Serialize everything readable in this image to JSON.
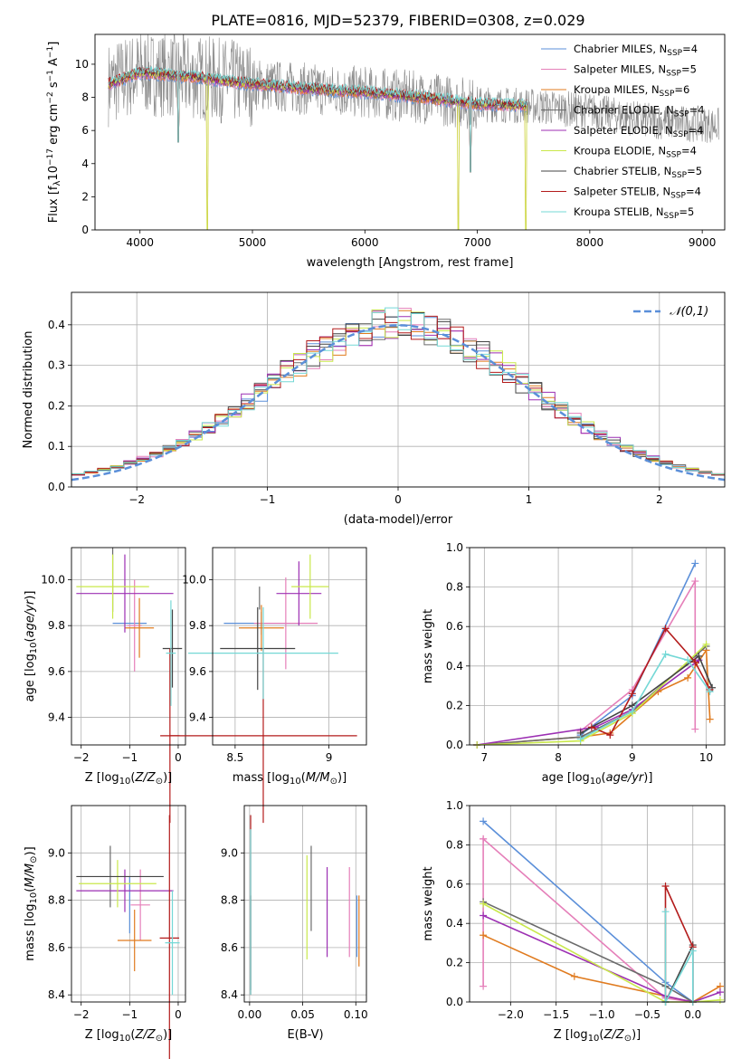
{
  "figure": {
    "title": "PLATE=0816, MJD=52379, FIBERID=0308, z=0.029"
  },
  "colors": {
    "s0": "#5b8fd9",
    "s1": "#e57fb9",
    "s2": "#e07b1f",
    "s3": "#6b6b6b",
    "s4": "#9c2fb3",
    "s5": "#c9e84a",
    "s6": "#444444",
    "s7": "#b31b1b",
    "s8": "#74d8d6",
    "obs": "#8a8a8a"
  },
  "legend_spectrum": [
    {
      "pre": "Chabrier MILES, N",
      "sub": "SSP",
      "post": "=4"
    },
    {
      "pre": "Salpeter MILES, N",
      "sub": "SSP",
      "post": "=5"
    },
    {
      "pre": "Kroupa MILES, N",
      "sub": "SSP",
      "post": "=6"
    },
    {
      "pre": "Chabrier ELODIE, N",
      "sub": "SSP",
      "post": "=4"
    },
    {
      "pre": "Salpeter ELODIE, N",
      "sub": "SSP",
      "post": "=4"
    },
    {
      "pre": "Kroupa ELODIE, N",
      "sub": "SSP",
      "post": "=4"
    },
    {
      "pre": "Chabrier STELIB, N",
      "sub": "SSP",
      "post": "=5"
    },
    {
      "pre": "Salpeter STELIB, N",
      "sub": "SSP",
      "post": "=4"
    },
    {
      "pre": "Kroupa STELIB, N",
      "sub": "SSP",
      "post": "=5"
    }
  ],
  "legend_normal": "𝒩(0,1)",
  "chart_data": [
    {
      "id": "spectrum",
      "type": "line",
      "xlabel": "wavelength [Angstrom, rest frame]",
      "ylabel_parts": [
        "Flux [f",
        "λ",
        "10",
        "−17",
        " erg cm",
        "−2",
        " s",
        "−1",
        " A",
        "−1",
        "]"
      ],
      "xlim": [
        3600,
        9200
      ],
      "ylim": [
        0,
        11.8
      ],
      "xticks": [
        4000,
        5000,
        6000,
        7000,
        8000,
        9000
      ],
      "yticks": [
        0,
        2,
        4,
        6,
        8,
        10
      ],
      "observed_range": [
        3720,
        9150
      ],
      "model_range": [
        3720,
        7440
      ],
      "continuum": [
        [
          3720,
          8.8
        ],
        [
          4000,
          9.5
        ],
        [
          4500,
          9.2
        ],
        [
          5000,
          8.8
        ],
        [
          5500,
          8.5
        ],
        [
          6000,
          8.3
        ],
        [
          6500,
          8.0
        ],
        [
          7000,
          7.6
        ],
        [
          7440,
          7.5
        ],
        [
          8000,
          7.2
        ],
        [
          8500,
          6.6
        ],
        [
          9150,
          6.3
        ]
      ],
      "dips": [
        [
          4340,
          5.3
        ],
        [
          4600,
          0
        ],
        [
          6830,
          0
        ],
        [
          6940,
          3.5
        ],
        [
          7430,
          0
        ]
      ],
      "grid": false
    },
    {
      "id": "residuals",
      "type": "histogram",
      "xlabel": "(data-model)/error",
      "ylabel": "Normed distribution",
      "xlim": [
        -2.5,
        2.5
      ],
      "ylim": [
        0,
        0.48
      ],
      "xticks": [
        -2,
        -1,
        0,
        1,
        2
      ],
      "yticks": [
        0.0,
        0.1,
        0.2,
        0.3,
        0.4
      ],
      "bin_width": 0.1,
      "grid": true,
      "normal": {
        "mean": 0,
        "sigma": 1,
        "label": "𝒩(0,1)"
      }
    },
    {
      "id": "age_vs_Z",
      "type": "scatter",
      "xlabel": "Z [log10(Z/Z⊙)]",
      "ylabel": "age  [log10(age/yr)]",
      "xlim": [
        -2.2,
        0.15
      ],
      "ylim": [
        9.28,
        10.14
      ],
      "xticks": [
        -2,
        -1,
        0
      ],
      "yticks": [
        9.4,
        9.6,
        9.8,
        10.0
      ],
      "grid": true,
      "points": [
        {
          "s": 0,
          "x": -1.0,
          "xerr": 0.35,
          "y": 9.81,
          "yerr": 0.0
        },
        {
          "s": 1,
          "x": -0.9,
          "xerr": 0.15,
          "y": 9.8,
          "yerr": 0.2
        },
        {
          "s": 2,
          "x": -0.8,
          "xerr": 0.3,
          "y": 9.79,
          "yerr": 0.13
        },
        {
          "s": 3,
          "x": -1.35,
          "xerr": 0.0,
          "y": 10.0,
          "yerr": 0.14
        },
        {
          "s": 4,
          "x": -1.1,
          "xerr": 1.0,
          "y": 9.94,
          "yerr": 0.17
        },
        {
          "s": 5,
          "x": -1.35,
          "xerr": 0.75,
          "y": 9.97,
          "yerr": 0.14
        },
        {
          "s": 6,
          "x": -0.12,
          "xerr": 0.2,
          "y": 9.7,
          "yerr": 0.17
        },
        {
          "s": 7,
          "x": -0.17,
          "xerr": 0.2,
          "y": 9.32,
          "yerr": 0.38
        },
        {
          "s": 8,
          "x": -0.15,
          "xerr": 0.1,
          "y": 9.68,
          "yerr": 0.23
        }
      ]
    },
    {
      "id": "age_vs_mass",
      "type": "scatter",
      "xlabel": "mass [log10(M/M⊙)]",
      "ylabel": "",
      "xlim": [
        8.38,
        9.2
      ],
      "ylim": [
        9.28,
        10.14
      ],
      "xticks": [
        8.5,
        9.0
      ],
      "yticks": [
        9.4,
        9.6,
        9.8,
        10.0
      ],
      "grid": true,
      "points": [
        {
          "s": 0,
          "x": 8.64,
          "xerr": 0.2,
          "y": 9.81,
          "yerr": 0.05
        },
        {
          "s": 1,
          "x": 8.77,
          "xerr": 0.17,
          "y": 9.81,
          "yerr": 0.2
        },
        {
          "s": 2,
          "x": 8.64,
          "xerr": 0.12,
          "y": 9.79,
          "yerr": 0.1
        },
        {
          "s": 3,
          "x": 8.63,
          "xerr": 0.0,
          "y": 9.92,
          "yerr": 0.05
        },
        {
          "s": 4,
          "x": 8.84,
          "xerr": 0.12,
          "y": 9.94,
          "yerr": 0.14
        },
        {
          "s": 5,
          "x": 8.9,
          "xerr": 0.1,
          "y": 9.97,
          "yerr": 0.14
        },
        {
          "s": 6,
          "x": 8.62,
          "xerr": 0.2,
          "y": 9.7,
          "yerr": 0.18
        },
        {
          "s": 7,
          "x": 8.65,
          "xerr": 0.5,
          "y": 9.32,
          "yerr": 0.38
        },
        {
          "s": 8,
          "x": 8.65,
          "xerr": 0.4,
          "y": 9.68,
          "yerr": 0.2
        }
      ]
    },
    {
      "id": "mass_weight_vs_age",
      "type": "line",
      "xlabel": "age  [log10(age/yr)]",
      "ylabel": "mass weight",
      "xlim": [
        6.8,
        10.25
      ],
      "ylim": [
        0,
        1.0
      ],
      "xticks": [
        7,
        8,
        9,
        10
      ],
      "yticks": [
        0.0,
        0.2,
        0.4,
        0.6,
        0.8,
        1.0
      ],
      "grid": true,
      "series": [
        {
          "s": 0,
          "points": [
            [
              8.3,
              0.05
            ],
            [
              9.0,
              0.25
            ],
            [
              9.85,
              0.92
            ]
          ]
        },
        {
          "s": 1,
          "points": [
            [
              8.3,
              0.07
            ],
            [
              9.0,
              0.28
            ],
            [
              9.85,
              0.83
            ],
            [
              9.85,
              0.08
            ]
          ]
        },
        {
          "s": 2,
          "points": [
            [
              6.9,
              0.0
            ],
            [
              8.3,
              0.04
            ],
            [
              8.7,
              0.06
            ],
            [
              9.35,
              0.27
            ],
            [
              9.75,
              0.34
            ],
            [
              10.0,
              0.48
            ],
            [
              10.05,
              0.13
            ]
          ]
        },
        {
          "s": 3,
          "points": [
            [
              6.9,
              0.0
            ],
            [
              8.3,
              0.04
            ],
            [
              9.0,
              0.17
            ],
            [
              10.0,
              0.5
            ]
          ]
        },
        {
          "s": 4,
          "points": [
            [
              6.9,
              0.0
            ],
            [
              8.5,
              0.09
            ],
            [
              9.0,
              0.18
            ],
            [
              9.9,
              0.43
            ]
          ]
        },
        {
          "s": 5,
          "points": [
            [
              6.9,
              0.0
            ],
            [
              8.3,
              0.02
            ],
            [
              9.0,
              0.16
            ],
            [
              10.0,
              0.51
            ]
          ]
        },
        {
          "s": 6,
          "points": [
            [
              8.3,
              0.06
            ],
            [
              9.0,
              0.2
            ],
            [
              9.9,
              0.45
            ],
            [
              10.08,
              0.29
            ]
          ]
        },
        {
          "s": 7,
          "points": [
            [
              8.45,
              0.09
            ],
            [
              8.7,
              0.05
            ],
            [
              9.0,
              0.26
            ],
            [
              9.45,
              0.59
            ],
            [
              9.85,
              0.42
            ],
            [
              10.05,
              0.28
            ]
          ]
        },
        {
          "s": 8,
          "points": [
            [
              8.3,
              0.03
            ],
            [
              9.0,
              0.17
            ],
            [
              9.45,
              0.46
            ],
            [
              9.75,
              0.43
            ],
            [
              10.05,
              0.27
            ]
          ]
        }
      ]
    },
    {
      "id": "mass_vs_Z",
      "type": "scatter",
      "xlabel": "Z [log10(Z/Z⊙)]",
      "ylabel": "mass [log10(M/M⊙)]",
      "xlim": [
        -2.2,
        0.15
      ],
      "ylim": [
        8.37,
        9.2
      ],
      "xticks": [
        -2,
        -1,
        0
      ],
      "yticks": [
        8.4,
        8.6,
        8.8,
        9.0
      ],
      "grid": true,
      "points": [
        {
          "s": 0,
          "x": -1.0,
          "xerr": 0.0,
          "y": 8.78,
          "yerr": 0.12
        },
        {
          "s": 1,
          "x": -0.78,
          "xerr": 0.2,
          "y": 8.78,
          "yerr": 0.15
        },
        {
          "s": 2,
          "x": -0.9,
          "xerr": 0.35,
          "y": 8.63,
          "yerr": 0.13
        },
        {
          "s": 3,
          "x": -1.4,
          "xerr": 0.0,
          "y": 8.9,
          "yerr": 0.13
        },
        {
          "s": 4,
          "x": -1.1,
          "xerr": 1.0,
          "y": 8.84,
          "yerr": 0.09
        },
        {
          "s": 5,
          "x": -1.25,
          "xerr": 0.8,
          "y": 8.87,
          "yerr": 0.1
        },
        {
          "s": 6,
          "x": -1.2,
          "xerr": 0.9,
          "y": 8.9,
          "yerr": 0.0
        },
        {
          "s": 7,
          "x": -0.18,
          "xerr": 0.2,
          "y": 8.64,
          "yerr": 0.52
        },
        {
          "s": 8,
          "x": -0.12,
          "xerr": 0.15,
          "y": 8.62,
          "yerr": 0.22
        }
      ]
    },
    {
      "id": "mass_vs_EBV",
      "type": "scatter",
      "xlabel": "E(B-V)",
      "ylabel": "",
      "xlim": [
        -0.005,
        0.11
      ],
      "ylim": [
        8.37,
        9.2
      ],
      "xticks": [
        0.0,
        0.05,
        0.1
      ],
      "xticklabels": [
        "0.00",
        "0.05",
        "0.10"
      ],
      "yticks": [
        8.4,
        8.6,
        8.8,
        9.0
      ],
      "grid": true,
      "points": [
        {
          "s": 0,
          "x": 0.101,
          "xerr": 0,
          "y": 8.69,
          "yerr": 0.13
        },
        {
          "s": 1,
          "x": 0.094,
          "xerr": 0,
          "y": 8.75,
          "yerr": 0.19
        },
        {
          "s": 2,
          "x": 0.103,
          "xerr": 0,
          "y": 8.67,
          "yerr": 0.15
        },
        {
          "s": 3,
          "x": 0.058,
          "xerr": 0,
          "y": 8.85,
          "yerr": 0.18
        },
        {
          "s": 4,
          "x": 0.073,
          "xerr": 0,
          "y": 8.75,
          "yerr": 0.19
        },
        {
          "s": 5,
          "x": 0.054,
          "xerr": 0,
          "y": 8.77,
          "yerr": 0.22
        },
        {
          "s": 6,
          "x": 0.001,
          "xerr": 0,
          "y": 8.62,
          "yerr": 0.2
        },
        {
          "s": 7,
          "x": 0.001,
          "xerr": 0,
          "y": 8.78,
          "yerr": 0.38
        },
        {
          "s": 8,
          "x": 0.001,
          "xerr": 0,
          "y": 8.75,
          "yerr": 0.35
        }
      ]
    },
    {
      "id": "mass_weight_vs_Z",
      "type": "line",
      "xlabel": "Z [log10(Z/Z⊙)]",
      "ylabel": "mass weight",
      "xlim": [
        -2.45,
        0.35
      ],
      "ylim": [
        0,
        1.0
      ],
      "xticks": [
        -2.0,
        -1.5,
        -1.0,
        -0.5,
        0.0
      ],
      "xticklabels": [
        "−2.0",
        "−1.5",
        "−1.0",
        "−0.5",
        "0.0"
      ],
      "yticks": [
        0.0,
        0.2,
        0.4,
        0.6,
        0.8,
        1.0
      ],
      "grid": true,
      "series": [
        {
          "s": 0,
          "points": [
            [
              -2.3,
              0.92
            ],
            [
              -0.3,
              0.1
            ],
            [
              0.0,
              0.0
            ]
          ]
        },
        {
          "s": 1,
          "points": [
            [
              -2.3,
              0.83
            ],
            [
              -2.3,
              0.08
            ],
            [
              -2.3,
              0.83
            ],
            [
              -0.3,
              0.02
            ],
            [
              0.0,
              0.0
            ]
          ]
        },
        {
          "s": 2,
          "points": [
            [
              -2.3,
              0.34
            ],
            [
              -1.3,
              0.13
            ],
            [
              0.0,
              0.0
            ],
            [
              0.3,
              0.08
            ]
          ]
        },
        {
          "s": 3,
          "points": [
            [
              -2.3,
              0.51
            ],
            [
              -0.3,
              0.08
            ],
            [
              0.0,
              0.0
            ]
          ]
        },
        {
          "s": 4,
          "points": [
            [
              -2.3,
              0.44
            ],
            [
              -0.3,
              0.03
            ],
            [
              0.0,
              0.0
            ],
            [
              0.3,
              0.05
            ]
          ]
        },
        {
          "s": 5,
          "points": [
            [
              -2.3,
              0.5
            ],
            [
              -0.3,
              0.0
            ],
            [
              0.0,
              0.0
            ],
            [
              0.3,
              0.01
            ]
          ]
        },
        {
          "s": 6,
          "points": [
            [
              -0.3,
              0.0
            ],
            [
              0.0,
              0.29
            ],
            [
              0.0,
              0.0
            ]
          ]
        },
        {
          "s": 7,
          "points": [
            [
              -0.3,
              0.0
            ],
            [
              -0.3,
              0.59
            ],
            [
              0.0,
              0.28
            ],
            [
              0.0,
              0.0
            ]
          ]
        },
        {
          "s": 8,
          "points": [
            [
              -0.3,
              0.0
            ],
            [
              -0.3,
              0.46
            ],
            [
              -0.3,
              0.0
            ],
            [
              0.0,
              0.26
            ],
            [
              0.0,
              0.0
            ]
          ]
        }
      ]
    }
  ]
}
